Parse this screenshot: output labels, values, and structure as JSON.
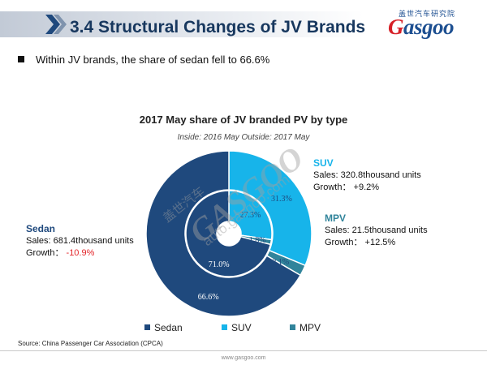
{
  "header": {
    "title": "3.4 Structural Changes of JV Brands",
    "logo_text": "Gasgoo",
    "logo_cn": "盖世汽车研究院"
  },
  "bullet": "Within JV brands, the share of sedan fell to 66.6%",
  "watermark": {
    "cn": "盖世汽车",
    "brand": "GASGOO",
    "url": "auto.gasgoo.com"
  },
  "chart_data": {
    "type": "donut",
    "title": "2017 May share of JV branded PV by type",
    "subtitle": "Inside: 2016 May  Outside: 2017 May",
    "categories": [
      "Sedan",
      "SUV",
      "MPV"
    ],
    "colors": {
      "Sedan": "#1f497d",
      "SUV": "#17b4ea",
      "MPV": "#31849b"
    },
    "series": [
      {
        "name": "2016 May",
        "ring": "inner",
        "values": [
          71.0,
          27.3,
          1.8
        ],
        "labels": [
          "71.0%",
          "27.3%",
          "1.8%"
        ]
      },
      {
        "name": "2017 May",
        "ring": "outer",
        "values": [
          66.6,
          31.3,
          2.1
        ],
        "labels": [
          "66.6%",
          "31.3%",
          "2.1%"
        ]
      }
    ],
    "annotations": {
      "sedan": {
        "name": "Sedan",
        "sales": "Sales: 681.4thousand units",
        "growth_label": "Growth：",
        "growth_value": "-10.9%"
      },
      "suv": {
        "name": "SUV",
        "sales": "Sales: 320.8thousand units",
        "growth_label": "Growth：",
        "growth_value": "+9.2%"
      },
      "mpv": {
        "name": "MPV",
        "sales": "Sales: 21.5thousand units",
        "growth_label": "Growth：",
        "growth_value": "+12.5%"
      }
    },
    "legend": [
      "Sedan",
      "SUV",
      "MPV"
    ],
    "legend_position": "bottom"
  },
  "source": "Source: China Passenger Car Association (CPCA)",
  "footer": "www.gasgoo.com"
}
